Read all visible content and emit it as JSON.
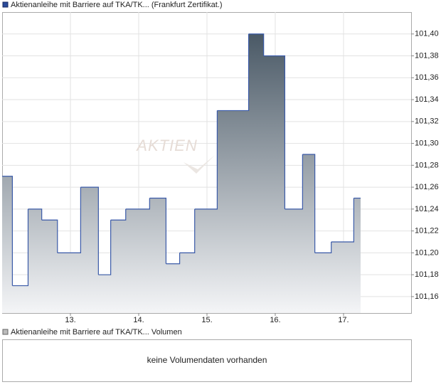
{
  "chart_data": {
    "type": "step-area",
    "legend": "Aktienanleihe mit Barriere auf TKA/TK... (Frankfurt Zertifikat.)",
    "watermark": "AKTIEN",
    "color": "#3a5aa8",
    "fill_top": "#4a5966",
    "fill_bottom": "#f4f5f7",
    "grid": true,
    "x": [
      12.0,
      12.15,
      12.38,
      12.58,
      12.81,
      13.15,
      13.41,
      13.59,
      13.81,
      14.16,
      14.4,
      14.6,
      14.82,
      15.15,
      15.61,
      15.83,
      16.14,
      16.4,
      16.58,
      16.82,
      17.15,
      17.25
    ],
    "values": [
      101.27,
      101.17,
      101.24,
      101.23,
      101.2,
      101.26,
      101.18,
      101.23,
      101.24,
      101.25,
      101.19,
      101.2,
      101.24,
      101.33,
      101.4,
      101.38,
      101.24,
      101.29,
      101.2,
      101.21,
      101.25,
      101.25
    ],
    "xlim": [
      12,
      17.99
    ],
    "xticks": [
      {
        "value": 13,
        "label": "13."
      },
      {
        "value": 14,
        "label": "14."
      },
      {
        "value": 15,
        "label": "15."
      },
      {
        "value": 16,
        "label": "16."
      },
      {
        "value": 17,
        "label": "17."
      }
    ],
    "ylim": [
      101.145,
      101.42
    ],
    "yticks": [
      {
        "value": 101.16,
        "label": "101,16"
      },
      {
        "value": 101.18,
        "label": "101,18"
      },
      {
        "value": 101.2,
        "label": "101,20"
      },
      {
        "value": 101.22,
        "label": "101,22"
      },
      {
        "value": 101.24,
        "label": "101,24"
      },
      {
        "value": 101.26,
        "label": "101,26"
      },
      {
        "value": 101.28,
        "label": "101,28"
      },
      {
        "value": 101.3,
        "label": "101,30"
      },
      {
        "value": 101.32,
        "label": "101,32"
      },
      {
        "value": 101.34,
        "label": "101,34"
      },
      {
        "value": 101.36,
        "label": "101,36"
      },
      {
        "value": 101.38,
        "label": "101,38"
      },
      {
        "value": 101.4,
        "label": "101,40"
      }
    ]
  },
  "volume_panel": {
    "legend": "Aktienanleihe mit Barriere auf TKA/TK... Volumen",
    "message": "keine Volumendaten vorhanden"
  }
}
